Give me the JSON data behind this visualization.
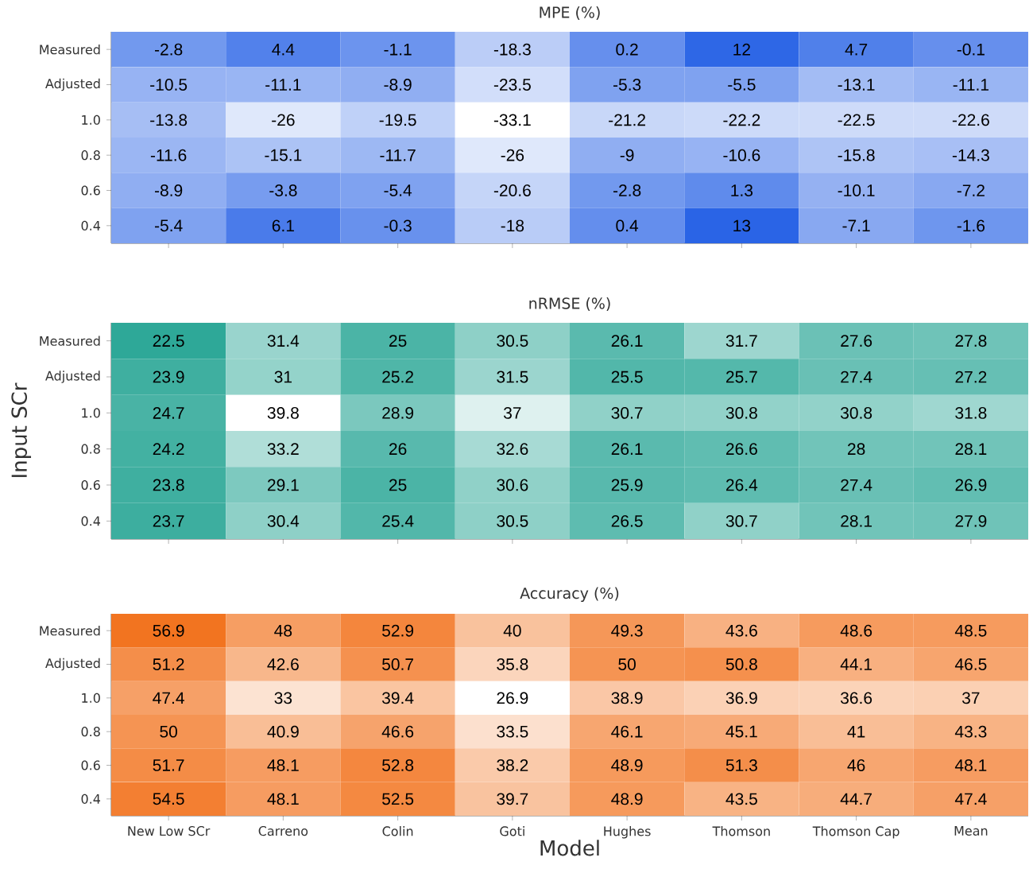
{
  "chart_data": [
    {
      "type": "heatmap",
      "title": "MPE (%)",
      "tick_labels": "y",
      "data_labels": true,
      "colors": [
        "#ffffff",
        "#2a64e6"
      ],
      "categories": [
        null,
        null,
        null,
        null,
        null,
        null,
        null,
        null
      ],
      "y_categories": [
        "Measured",
        "Adjusted",
        "1.0",
        "0.8",
        "0.6",
        "0.4"
      ],
      "cells": [
        [
          -2.8,
          4.4,
          -1.1,
          -18.3,
          0.2,
          12,
          4.7,
          -0.1
        ],
        [
          -10.5,
          -11.1,
          -8.9,
          -23.5,
          -5.3,
          -5.5,
          -13.1,
          -11.1
        ],
        [
          -13.8,
          -26,
          -19.5,
          -33.1,
          -21.2,
          -22.2,
          -22.5,
          -22.6
        ],
        [
          -11.6,
          -15.1,
          -11.7,
          -26,
          -9,
          -10.6,
          -15.8,
          -14.3
        ],
        [
          -8.9,
          -3.8,
          -5.4,
          -20.6,
          -2.8,
          1.3,
          -10.1,
          -7.2
        ],
        [
          -5.4,
          6.1,
          -0.3,
          -18,
          0.4,
          13,
          -7.1,
          -1.6
        ]
      ]
    },
    {
      "type": "heatmap",
      "title": "nRMSE (%)",
      "ylabel": "Input SCr",
      "tick_labels": "y",
      "data_labels": true,
      "colors": [
        "#2ea898",
        "#ffffff"
      ],
      "categories": [
        null,
        null,
        null,
        null,
        null,
        null,
        null,
        null
      ],
      "y_categories": [
        "Measured",
        "Adjusted",
        "1.0",
        "0.8",
        "0.6",
        "0.4"
      ],
      "cells": [
        [
          22.5,
          31.4,
          25,
          30.5,
          26.1,
          31.7,
          27.6,
          27.8
        ],
        [
          23.9,
          31,
          25.2,
          31.5,
          25.5,
          25.7,
          27.4,
          27.2
        ],
        [
          24.7,
          39.8,
          28.9,
          37,
          30.7,
          30.8,
          30.8,
          31.8
        ],
        [
          24.2,
          33.2,
          26,
          32.6,
          26.1,
          26.6,
          28,
          28.1
        ],
        [
          23.8,
          29.1,
          25,
          30.6,
          25.9,
          26.4,
          27.4,
          26.9
        ],
        [
          23.7,
          30.4,
          25.4,
          30.5,
          26.5,
          30.7,
          28.1,
          27.9
        ]
      ]
    },
    {
      "type": "heatmap",
      "title": "Accuracy (%)",
      "xlabel": "Model",
      "data_labels": true,
      "colors": [
        "#ffffff",
        "#f27420"
      ],
      "categories": [
        "New Low SCr",
        "Carreno",
        "Colin",
        "Goti",
        "Hughes",
        "Thomson",
        "Thomson Cap",
        "Mean"
      ],
      "y_categories": [
        "Measured",
        "Adjusted",
        "1.0",
        "0.8",
        "0.6",
        "0.4"
      ],
      "cells": [
        [
          56.9,
          48,
          52.9,
          40,
          49.3,
          43.6,
          48.6,
          48.5
        ],
        [
          51.2,
          42.6,
          50.7,
          35.8,
          50,
          50.8,
          44.1,
          46.5
        ],
        [
          47.4,
          33,
          39.4,
          26.9,
          38.9,
          36.9,
          36.6,
          37
        ],
        [
          50,
          40.9,
          46.6,
          33.5,
          46.1,
          45.1,
          41,
          43.3
        ],
        [
          51.7,
          48.1,
          52.8,
          38.2,
          48.9,
          51.3,
          46,
          48.1
        ],
        [
          54.5,
          48.1,
          52.5,
          39.7,
          48.9,
          43.5,
          44.7,
          47.4
        ]
      ]
    }
  ]
}
